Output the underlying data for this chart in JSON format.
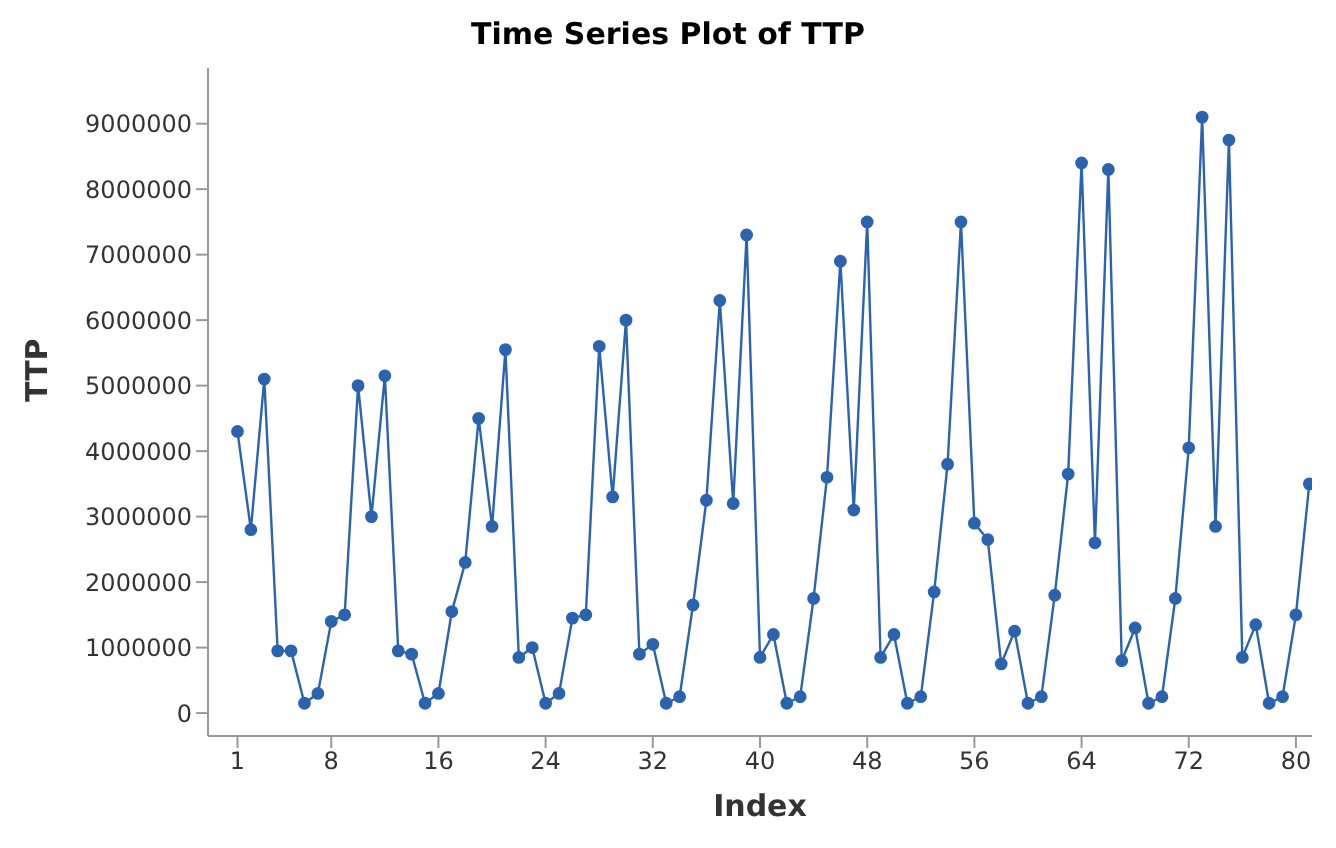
{
  "chart_data": {
    "type": "line",
    "title": "Time Series Plot of TTP",
    "xlabel": "Index",
    "ylabel": "TTP",
    "x": [
      1,
      2,
      3,
      4,
      5,
      6,
      7,
      8,
      9,
      10,
      11,
      12,
      13,
      14,
      15,
      16,
      17,
      18,
      19,
      20,
      21,
      22,
      23,
      24,
      25,
      26,
      27,
      28,
      29,
      30,
      31,
      32,
      33,
      34,
      35,
      36,
      37,
      38,
      39,
      40,
      41,
      42,
      43,
      44,
      45,
      46,
      47,
      48,
      49,
      50,
      51,
      52,
      53,
      54,
      55,
      56,
      57,
      58,
      59,
      60,
      61,
      62,
      63,
      64,
      65,
      66,
      67,
      68,
      69,
      70,
      71,
      72,
      73,
      74,
      75,
      76,
      77,
      78,
      79,
      80,
      81
    ],
    "series": [
      {
        "color": "#2a63b0",
        "values": [
          4300000,
          2800000,
          5100000,
          950000,
          950000,
          150000,
          300000,
          1400000,
          1500000,
          5000000,
          3000000,
          5150000,
          950000,
          900000,
          150000,
          300000,
          1550000,
          2300000,
          4500000,
          2850000,
          5550000,
          850000,
          1000000,
          150000,
          300000,
          1450000,
          1500000,
          5600000,
          3300000,
          6000000,
          900000,
          1050000,
          150000,
          250000,
          1650000,
          3250000,
          6300000,
          3200000,
          7300000,
          850000,
          1200000,
          150000,
          250000,
          1750000,
          3600000,
          6900000,
          3100000,
          7500000,
          850000,
          1200000,
          150000,
          250000,
          1850000,
          3800000,
          7500000,
          2900000,
          2650000,
          750000,
          1250000,
          150000,
          250000,
          1800000,
          3650000,
          8400000,
          2600000,
          8300000,
          800000,
          1300000,
          150000,
          250000,
          1750000,
          4050000,
          9100000,
          2850000,
          8750000,
          850000,
          1350000,
          150000,
          250000,
          1500000,
          3500000
        ]
      }
    ],
    "xlim": [
      -1.2,
      81.2
    ],
    "xticks": [
      1,
      8,
      16,
      24,
      32,
      40,
      48,
      56,
      64,
      72,
      80
    ],
    "ylim": [
      -350000,
      9850000
    ],
    "yticks": [
      0,
      1000000,
      2000000,
      3000000,
      4000000,
      5000000,
      6000000,
      7000000,
      8000000,
      9000000
    ],
    "grid": false,
    "legend": false,
    "marker": "circle",
    "line_style": "solid"
  }
}
